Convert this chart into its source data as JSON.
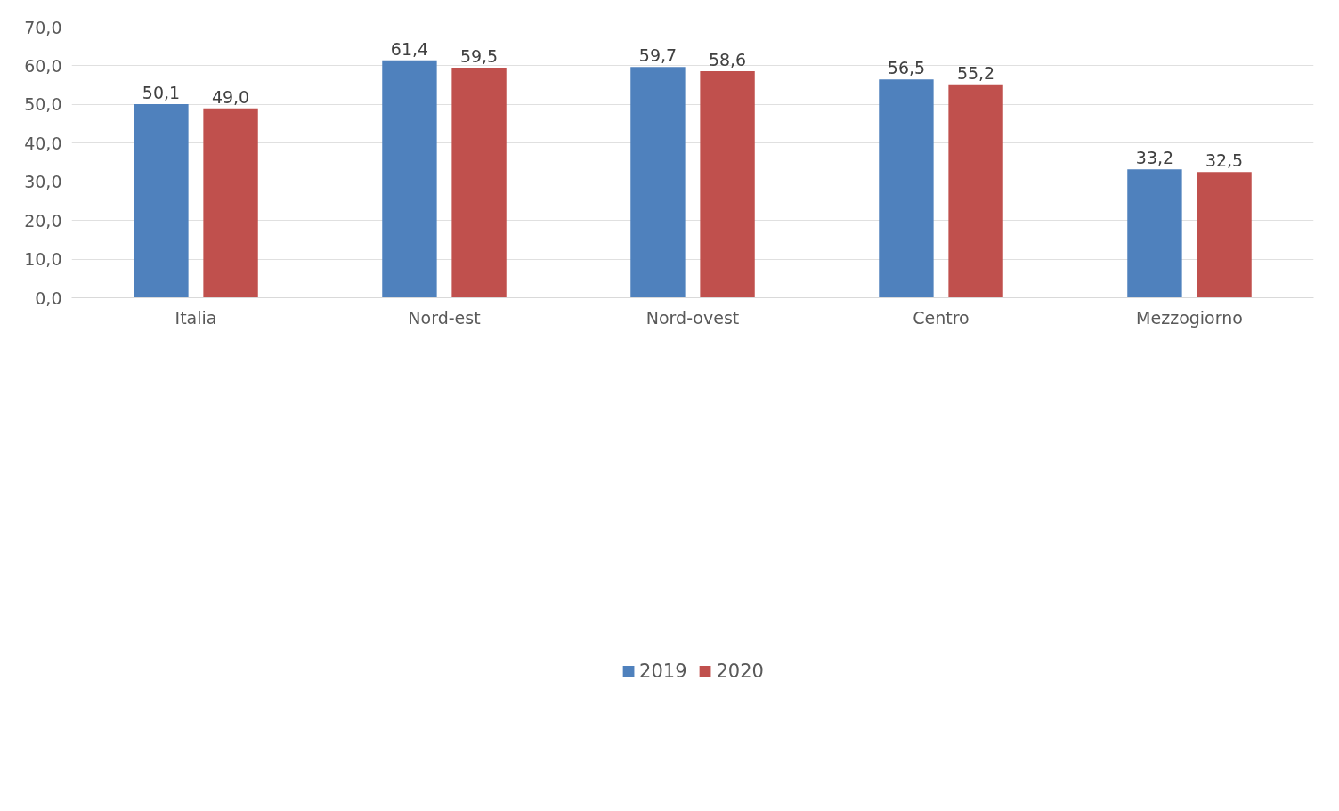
{
  "chart_data": {
    "type": "bar",
    "categories": [
      "Italia",
      "Nord-est",
      "Nord-ovest",
      "Centro",
      "Mezzogiorno"
    ],
    "series": [
      {
        "name": "2019",
        "color": "#4f81bd",
        "values": [
          50.1,
          61.4,
          59.7,
          56.5,
          33.2
        ],
        "value_labels": [
          "50,1",
          "61,4",
          "59,7",
          "56,5",
          "33,2"
        ]
      },
      {
        "name": "2020",
        "color": "#c0504d",
        "values": [
          49.0,
          59.5,
          58.6,
          55.2,
          32.5
        ],
        "value_labels": [
          "49,0",
          "59,5",
          "58,6",
          "55,2",
          "32,5"
        ]
      }
    ],
    "ylim": [
      0,
      70
    ],
    "yticks": [
      {
        "value": 0,
        "label": "0,0"
      },
      {
        "value": 10,
        "label": "10,0"
      },
      {
        "value": 20,
        "label": "20,0"
      },
      {
        "value": 30,
        "label": "30,0"
      },
      {
        "value": 40,
        "label": "40,0"
      },
      {
        "value": 50,
        "label": "50,0"
      },
      {
        "value": 60,
        "label": "60,0"
      },
      {
        "value": 70,
        "label": "70,0"
      }
    ],
    "grid": "y",
    "legend": "bottom"
  }
}
